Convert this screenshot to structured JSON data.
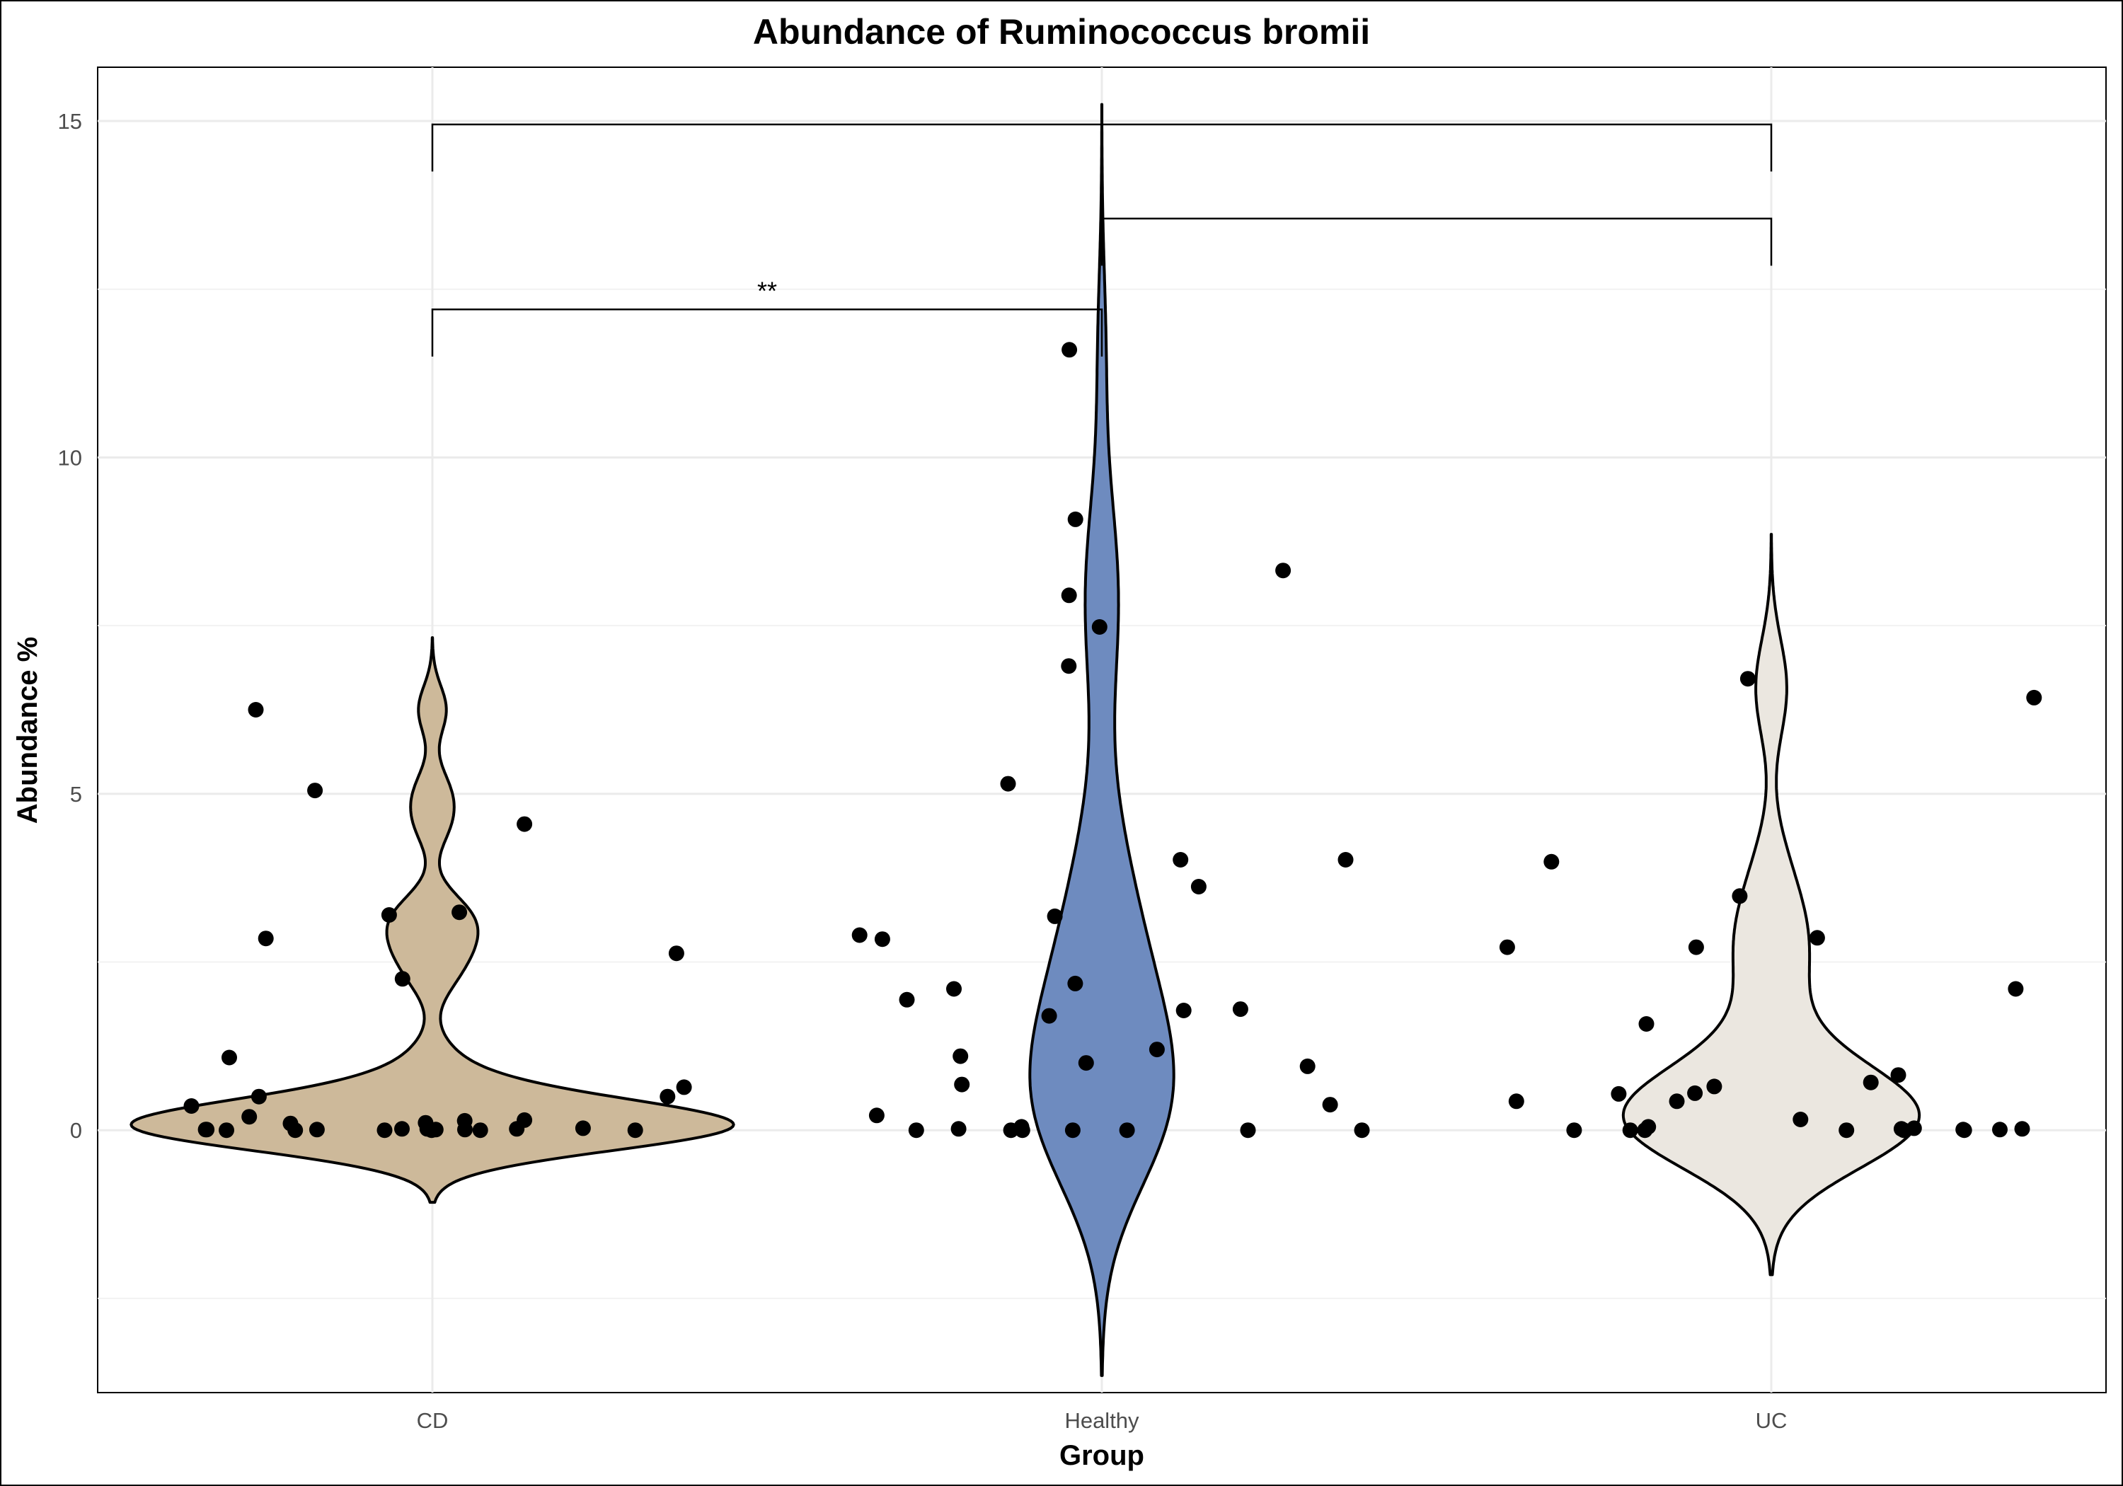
{
  "chart_data": {
    "type": "violin",
    "title": "Abundance of Ruminococcus bromii",
    "xlabel": "Group",
    "ylabel": "Abundance %",
    "categories": [
      "CD",
      "Healthy",
      "UC"
    ],
    "colors": [
      "#CDB99A",
      "#6E8BBF",
      "#EBE7E0"
    ],
    "ylim": [
      -3.9,
      15.8
    ],
    "yticks": [
      0,
      5,
      10,
      15
    ],
    "grid": true,
    "legend": "none",
    "points": {
      "CD": [
        0.02,
        0.01,
        0.0,
        0.0,
        0.02,
        0.01,
        0.01,
        0.0,
        0.0,
        0.0,
        0.01,
        0.03,
        0.02,
        0.01,
        0.0,
        0.1,
        0.15,
        0.2,
        0.14,
        0.11,
        0.5,
        0.36,
        0.5,
        0.64,
        1.08,
        2.25,
        2.63,
        2.85,
        3.2,
        3.24,
        4.55,
        5.05,
        6.25
      ],
      "Healthy": [
        0.0,
        0.0,
        0.02,
        0.0,
        0.0,
        0.0,
        0.0,
        0.0,
        0.05,
        0.22,
        0.38,
        0.68,
        0.95,
        1.0,
        1.1,
        1.2,
        1.7,
        1.8,
        1.78,
        1.94,
        2.1,
        2.18,
        2.84,
        2.9,
        3.18,
        3.62,
        4.02,
        4.02,
        5.15,
        6.9,
        7.48,
        7.95,
        8.32,
        9.08,
        11.6
      ],
      "UC": [
        0.0,
        0.0,
        0.02,
        0.0,
        0.05,
        0.03,
        0.01,
        0.02,
        0.01,
        0.0,
        0.0,
        0.0,
        0.16,
        0.43,
        0.43,
        0.55,
        0.54,
        0.65,
        0.71,
        0.82,
        1.58,
        2.1,
        2.72,
        2.72,
        2.86,
        3.48,
        3.99,
        6.43,
        6.71
      ]
    },
    "comparisons": [
      {
        "groups": [
          "CD",
          "Healthy"
        ],
        "y": 12.2,
        "label": "**"
      },
      {
        "groups": [
          "Healthy",
          "UC"
        ],
        "y": 13.55,
        "label": ""
      },
      {
        "groups": [
          "CD",
          "UC"
        ],
        "y": 14.95,
        "label": ""
      }
    ]
  }
}
